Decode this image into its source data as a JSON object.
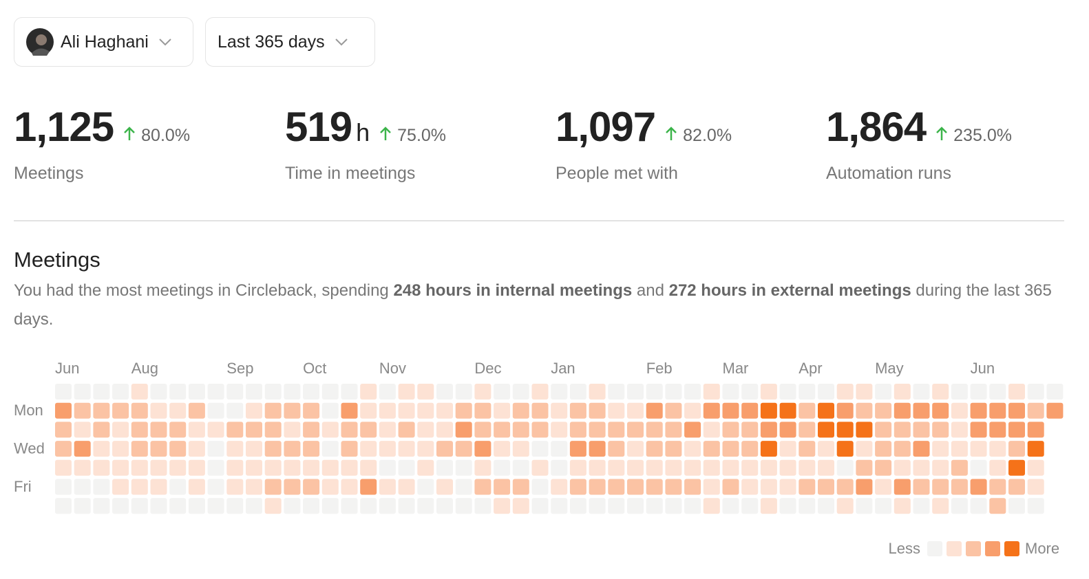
{
  "filters": {
    "user": "Ali Haghani",
    "range": "Last 365 days"
  },
  "stats": [
    {
      "value": "1,125",
      "change": "80.0%",
      "label": "Meetings"
    },
    {
      "value": "519",
      "unit": "h",
      "change": "75.0%",
      "label": "Time in meetings"
    },
    {
      "value": "1,097",
      "change": "82.0%",
      "label": "People met with"
    },
    {
      "value": "1,864",
      "change": "235.0%",
      "label": "Automation runs"
    }
  ],
  "section": {
    "title": "Meetings",
    "description": [
      "You had the most meetings in Circleback, spending ",
      "248 hours in internal meetings",
      " and ",
      "272 hours in external meetings",
      " during the last 365 days."
    ]
  },
  "heatmap": {
    "columns": [
      "Jun",
      null,
      null,
      null,
      "Aug",
      null,
      null,
      null,
      null,
      "Sep",
      null,
      null,
      null,
      "Oct",
      null,
      null,
      null,
      "Nov",
      null,
      null,
      null,
      null,
      "Dec",
      null,
      null,
      null,
      "Jan",
      null,
      null,
      null,
      null,
      "Feb",
      null,
      null,
      null,
      "Mar",
      null,
      null,
      null,
      "Apr",
      null,
      null,
      null,
      "May",
      null,
      null,
      null,
      null,
      "Jun",
      null,
      null,
      null,
      null
    ],
    "rows": [
      null,
      "Mon",
      null,
      "Wed",
      null,
      "Fri",
      null
    ],
    "cells": [
      [
        0,
        0,
        0,
        0,
        1,
        0,
        0,
        0,
        0,
        0,
        0,
        0,
        0,
        0,
        0,
        0,
        1,
        0,
        1,
        1,
        0,
        0,
        1,
        0,
        0,
        1,
        0,
        0,
        1,
        0,
        0,
        0,
        0,
        0,
        1,
        0,
        0,
        1,
        0,
        0,
        0,
        1,
        1,
        0,
        1,
        0,
        1,
        0,
        0,
        0,
        1,
        0,
        0
      ],
      [
        3,
        2,
        2,
        2,
        2,
        1,
        1,
        2,
        0,
        0,
        1,
        2,
        2,
        2,
        0,
        3,
        1,
        1,
        1,
        1,
        1,
        2,
        2,
        1,
        2,
        2,
        1,
        2,
        2,
        1,
        1,
        3,
        2,
        1,
        3,
        3,
        3,
        4,
        4,
        2,
        4,
        3,
        2,
        2,
        3,
        3,
        3,
        1,
        3,
        3,
        3,
        2,
        3
      ],
      [
        2,
        1,
        2,
        1,
        2,
        2,
        2,
        1,
        1,
        2,
        2,
        2,
        1,
        2,
        1,
        2,
        2,
        1,
        2,
        1,
        1,
        3,
        2,
        2,
        2,
        2,
        1,
        2,
        2,
        2,
        2,
        2,
        2,
        3,
        1,
        2,
        2,
        3,
        3,
        2,
        4,
        4,
        4,
        2,
        2,
        2,
        2,
        1,
        3,
        3,
        3,
        3,
        null
      ],
      [
        2,
        3,
        1,
        1,
        2,
        2,
        2,
        1,
        0,
        1,
        1,
        2,
        2,
        2,
        0,
        2,
        1,
        1,
        1,
        1,
        2,
        2,
        3,
        1,
        1,
        0,
        0,
        3,
        3,
        2,
        1,
        2,
        2,
        1,
        2,
        2,
        2,
        4,
        1,
        2,
        1,
        4,
        1,
        2,
        2,
        3,
        1,
        1,
        1,
        1,
        2,
        4,
        null
      ],
      [
        1,
        1,
        1,
        1,
        1,
        1,
        1,
        1,
        0,
        1,
        1,
        1,
        1,
        1,
        1,
        1,
        1,
        0,
        0,
        1,
        0,
        0,
        1,
        0,
        0,
        1,
        0,
        1,
        1,
        1,
        1,
        1,
        1,
        1,
        1,
        1,
        1,
        1,
        1,
        1,
        1,
        0,
        2,
        2,
        1,
        1,
        1,
        2,
        0,
        1,
        4,
        1,
        null
      ],
      [
        0,
        0,
        0,
        1,
        1,
        1,
        0,
        1,
        0,
        1,
        1,
        2,
        2,
        2,
        1,
        1,
        3,
        1,
        1,
        0,
        1,
        0,
        2,
        2,
        2,
        0,
        1,
        2,
        2,
        2,
        2,
        2,
        2,
        2,
        1,
        2,
        1,
        1,
        1,
        2,
        2,
        2,
        3,
        1,
        3,
        2,
        2,
        2,
        3,
        2,
        2,
        1,
        null
      ],
      [
        0,
        0,
        0,
        0,
        0,
        0,
        0,
        0,
        0,
        0,
        0,
        1,
        0,
        0,
        0,
        0,
        0,
        0,
        0,
        0,
        0,
        0,
        0,
        1,
        1,
        0,
        0,
        0,
        0,
        0,
        0,
        0,
        0,
        0,
        1,
        0,
        0,
        1,
        0,
        0,
        0,
        1,
        0,
        0,
        1,
        0,
        1,
        0,
        0,
        2,
        0,
        0,
        null
      ]
    ],
    "colors": [
      "#f3f3f2",
      "#fde2d4",
      "#fbc3a4",
      "#f89e6c",
      "#f57219"
    ],
    "legend": {
      "less": "Less",
      "more": "More",
      "levels": [
        0,
        1,
        2,
        3,
        4
      ]
    }
  }
}
